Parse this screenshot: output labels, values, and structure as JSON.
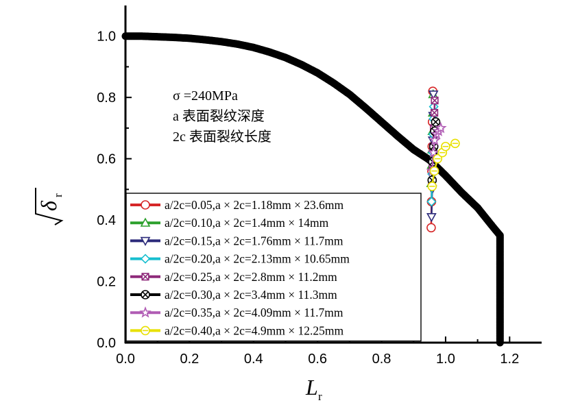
{
  "chart_data": {
    "type": "scatter",
    "xlabel": "L",
    "xlabel_sub": "r",
    "ylabel": "δ",
    "ylabel_sub": "r",
    "ylabel_radical": true,
    "xlim": [
      0.0,
      1.3
    ],
    "ylim": [
      0.0,
      1.1
    ],
    "xticks": [
      0.0,
      0.2,
      0.4,
      0.6,
      0.8,
      1.0,
      1.2
    ],
    "xtick_labels": [
      "0.0",
      "0.2",
      "0.4",
      "0.6",
      "0.8",
      "1.0",
      "1.2"
    ],
    "yticks": [
      0.0,
      0.2,
      0.4,
      0.6,
      0.8,
      1.0
    ],
    "ytick_labels": [
      "0.0",
      "0.2",
      "0.4",
      "0.6",
      "0.8",
      "1.0"
    ],
    "grid": false,
    "legend_position": "bottom-left",
    "annotation": [
      "σ =240MPa",
      "a 表面裂纹深度",
      "2c 表面裂纹长度"
    ],
    "fad_curve": {
      "color": "#000000",
      "lr_cut": 1.17,
      "x": [
        0.0,
        0.05,
        0.1,
        0.15,
        0.2,
        0.25,
        0.3,
        0.35,
        0.4,
        0.45,
        0.5,
        0.55,
        0.6,
        0.65,
        0.7,
        0.75,
        0.8,
        0.85,
        0.9,
        0.95,
        1.0,
        1.05,
        1.1,
        1.15,
        1.17,
        1.17
      ],
      "y": [
        1.0,
        1.0,
        0.998,
        0.996,
        0.993,
        0.988,
        0.982,
        0.974,
        0.963,
        0.948,
        0.93,
        0.907,
        0.88,
        0.847,
        0.81,
        0.766,
        0.72,
        0.674,
        0.63,
        0.596,
        0.545,
        0.49,
        0.44,
        0.375,
        0.35,
        0.0
      ]
    },
    "series": [
      {
        "name": "a/2c=0.05,a × 2c=1.18mm × 23.6mm",
        "color": "#d62728",
        "marker": "circle",
        "x": [
          0.955,
          0.956,
          0.957,
          0.958,
          0.959,
          0.96
        ],
        "y": [
          0.375,
          0.46,
          0.56,
          0.64,
          0.72,
          0.82
        ]
      },
      {
        "name": "a/2c=0.10,a × 2c=1.4mm × 14mm",
        "color": "#2ca02c",
        "marker": "triangle-up",
        "x": [
          0.955,
          0.957,
          0.958,
          0.959,
          0.96,
          0.961
        ],
        "y": [
          0.52,
          0.58,
          0.63,
          0.69,
          0.75,
          0.81
        ]
      },
      {
        "name": "a/2c=0.15,a × 2c=1.76mm × 11.7mm",
        "color": "#2b2a7a",
        "marker": "triangle-down",
        "x": [
          0.956,
          0.958,
          0.959,
          0.96,
          0.961,
          0.962
        ],
        "y": [
          0.41,
          0.5,
          0.58,
          0.66,
          0.74,
          0.81
        ]
      },
      {
        "name": "a/2c=0.20,a × 2c=2.13mm × 10.65mm",
        "color": "#17becf",
        "marker": "diamond",
        "x": [
          0.956,
          0.958,
          0.96,
          0.961,
          0.962,
          0.963
        ],
        "y": [
          0.46,
          0.55,
          0.62,
          0.68,
          0.73,
          0.77
        ]
      },
      {
        "name": "a/2c=0.25,a × 2c=2.8mm × 11.2mm",
        "color": "#8e2a7a",
        "marker": "square-x",
        "x": [
          0.957,
          0.959,
          0.961,
          0.963,
          0.965,
          0.966
        ],
        "y": [
          0.52,
          0.58,
          0.64,
          0.7,
          0.75,
          0.79
        ]
      },
      {
        "name": "a/2c=0.30,a × 2c=3.4mm × 11.3mm",
        "color": "#000000",
        "marker": "circle-x",
        "x": [
          0.958,
          0.96,
          0.963,
          0.966,
          0.969,
          0.972
        ],
        "y": [
          0.53,
          0.59,
          0.64,
          0.69,
          0.72,
          0.6
        ]
      },
      {
        "name": "a/2c=0.35,a × 2c=4.09mm × 11.7mm",
        "color": "#b05cb4",
        "marker": "star",
        "x": [
          0.958,
          0.962,
          0.966,
          0.972,
          0.978,
          0.985
        ],
        "y": [
          0.56,
          0.62,
          0.66,
          0.68,
          0.69,
          0.7
        ]
      },
      {
        "name": "a/2c=0.40,a × 2c=4.9mm × 12.25mm",
        "color": "#e8e000",
        "marker": "circle-dash",
        "x": [
          0.958,
          0.965,
          0.975,
          0.99,
          1.0,
          1.03
        ],
        "y": [
          0.51,
          0.56,
          0.6,
          0.62,
          0.64,
          0.65
        ]
      }
    ]
  }
}
